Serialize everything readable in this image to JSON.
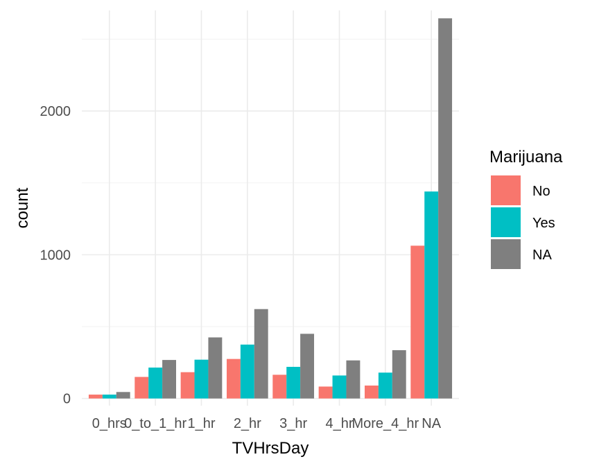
{
  "chart_data": {
    "type": "bar",
    "xlabel": "TVHrsDay",
    "ylabel": "count",
    "categories": [
      "0_hrs",
      "0_to_1_hr",
      "1_hr",
      "2_hr",
      "3_hr",
      "4_hr",
      "More_4_hr",
      "NA"
    ],
    "series": [
      {
        "name": "No",
        "color": "#F8766D",
        "values": [
          27,
          150,
          183,
          275,
          165,
          83,
          90,
          1063
        ]
      },
      {
        "name": "Yes",
        "color": "#00BFC4",
        "values": [
          27,
          215,
          270,
          375,
          220,
          160,
          180,
          1440
        ]
      },
      {
        "name": "NA",
        "color": "#7F7F7F",
        "values": [
          45,
          268,
          425,
          622,
          450,
          265,
          336,
          2645
        ]
      }
    ],
    "yticks": [
      0,
      1000,
      2000
    ],
    "ylim": [
      -50,
      2700
    ],
    "grid": true,
    "legend": {
      "title": "Marijuana",
      "position": "right"
    }
  }
}
